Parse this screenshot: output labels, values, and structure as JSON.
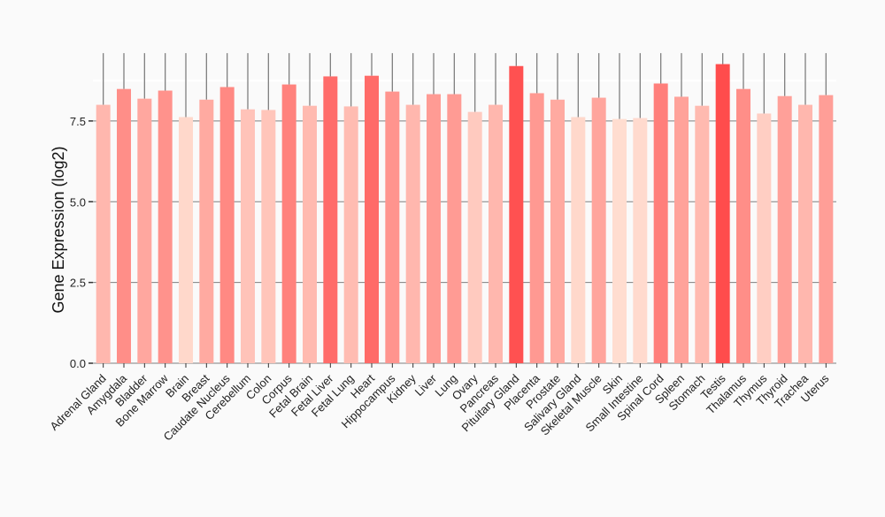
{
  "chart_data": {
    "type": "bar",
    "title": "",
    "xlabel": "",
    "ylabel": "Gene Expression (log2)",
    "ylim": [
      0,
      9.9
    ],
    "yticks": [
      "0.0",
      "2.5",
      "5.0",
      "7.5"
    ],
    "ytick_values": [
      0,
      2.5,
      5.0,
      7.5
    ],
    "grid": true,
    "error_bar_top": 9.6,
    "color_low": "#FFDDD0",
    "color_high": "#FF4C4C",
    "categories": [
      "Adrenal Gland",
      "Amygdala",
      "Bladder",
      "Bone Marrow",
      "Brain",
      "Breast",
      "Caudate Nucleus",
      "Cerebellum",
      "Colon",
      "Corpus",
      "Fetal Brain",
      "Fetal Liver",
      "Fetal Lung",
      "Heart",
      "Hippocampus",
      "Kidney",
      "Liver",
      "Lung",
      "Ovary",
      "Pancreas",
      "Pituitary Gland",
      "Placenta",
      "Prostate",
      "Salivary Gland",
      "Skeletal Muscle",
      "Skin",
      "Small Intestine",
      "Spinal Cord",
      "Spleen",
      "Stomach",
      "Testis",
      "Thalamus",
      "Thymus",
      "Thyroid",
      "Trachea",
      "Uterus"
    ],
    "values": [
      8.0,
      8.49,
      8.19,
      8.44,
      7.62,
      8.16,
      8.55,
      7.86,
      7.84,
      8.63,
      7.97,
      8.88,
      7.95,
      8.9,
      8.41,
      8.0,
      8.33,
      8.33,
      7.78,
      8.0,
      9.2,
      8.36,
      8.16,
      7.62,
      8.22,
      7.56,
      7.59,
      8.66,
      8.25,
      7.97,
      9.26,
      8.49,
      7.73,
      8.27,
      8.0,
      8.3
    ]
  }
}
